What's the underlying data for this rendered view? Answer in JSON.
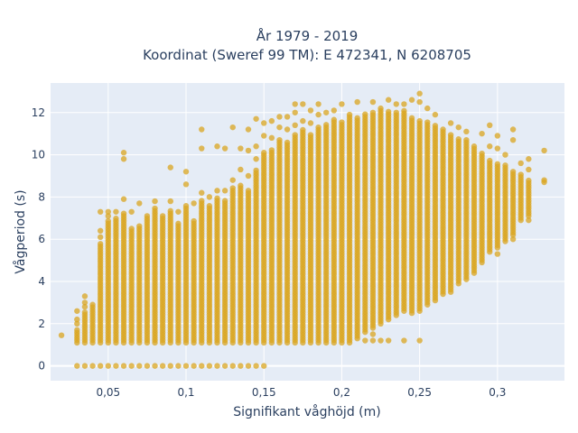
{
  "chart_data": {
    "type": "scatter",
    "title_line1": "År 1979 - 2019",
    "title_line2": "Koordinat (Sweref 99 TM): E 472341, N 6208705",
    "xlabel": "Signifikant våghöjd (m)",
    "ylabel": "Vågperiod (s)",
    "xlim": [
      0.013,
      0.343
    ],
    "ylim": [
      -0.7,
      13.4
    ],
    "xticks": [
      0.05,
      0.1,
      0.15,
      0.2,
      0.25,
      0.3
    ],
    "xtick_labels": [
      "0,05",
      "0,1",
      "0,15",
      "0,2",
      "0,25",
      "0,3"
    ],
    "yticks": [
      0,
      2,
      4,
      6,
      8,
      10,
      12
    ],
    "ytick_labels": [
      "0",
      "2",
      "4",
      "6",
      "8",
      "10",
      "12"
    ],
    "grid": true,
    "color": "#daa520",
    "columns": [
      {
        "x": 0.02,
        "ranges": [
          [
            1.45,
            1.45
          ]
        ],
        "extra": []
      },
      {
        "x": 0.03,
        "ranges": [
          [
            1.1,
            1.8
          ]
        ],
        "extra": [
          0,
          2.0,
          2.2,
          2.6
        ]
      },
      {
        "x": 0.035,
        "ranges": [
          [
            1.1,
            2.6
          ]
        ],
        "extra": [
          0,
          2.8,
          3.0,
          3.3
        ]
      },
      {
        "x": 0.04,
        "ranges": [
          [
            1.1,
            3.0
          ]
        ],
        "extra": [
          0
        ]
      },
      {
        "x": 0.045,
        "ranges": [
          [
            1.1,
            5.8
          ]
        ],
        "extra": [
          0,
          6.1,
          6.4,
          7.3
        ]
      },
      {
        "x": 0.05,
        "ranges": [
          [
            1.1,
            6.9
          ]
        ],
        "extra": [
          0,
          7.1,
          7.3
        ]
      },
      {
        "x": 0.055,
        "ranges": [
          [
            1.1,
            7.0
          ]
        ],
        "extra": [
          0,
          7.3
        ]
      },
      {
        "x": 0.06,
        "ranges": [
          [
            1.1,
            7.3
          ]
        ],
        "extra": [
          0,
          7.9,
          9.8,
          10.1
        ]
      },
      {
        "x": 0.065,
        "ranges": [
          [
            1.1,
            6.6
          ]
        ],
        "extra": [
          0,
          7.3
        ]
      },
      {
        "x": 0.07,
        "ranges": [
          [
            1.1,
            6.7
          ]
        ],
        "extra": [
          0,
          7.7
        ]
      },
      {
        "x": 0.075,
        "ranges": [
          [
            1.1,
            7.2
          ]
        ],
        "extra": [
          0
        ]
      },
      {
        "x": 0.08,
        "ranges": [
          [
            1.1,
            7.5
          ]
        ],
        "extra": [
          0,
          7.8
        ]
      },
      {
        "x": 0.085,
        "ranges": [
          [
            1.1,
            7.1
          ]
        ],
        "extra": [
          0
        ]
      },
      {
        "x": 0.09,
        "ranges": [
          [
            1.1,
            7.4
          ]
        ],
        "extra": [
          0,
          7.8,
          9.4
        ]
      },
      {
        "x": 0.095,
        "ranges": [
          [
            1.1,
            6.8
          ]
        ],
        "extra": [
          0,
          7.3
        ]
      },
      {
        "x": 0.1,
        "ranges": [
          [
            1.1,
            7.6
          ]
        ],
        "extra": [
          0,
          8.6,
          9.2
        ]
      },
      {
        "x": 0.105,
        "ranges": [
          [
            1.1,
            6.9
          ]
        ],
        "extra": [
          0,
          7.7
        ]
      },
      {
        "x": 0.11,
        "ranges": [
          [
            1.1,
            7.9
          ]
        ],
        "extra": [
          0,
          8.2,
          10.3,
          11.2
        ]
      },
      {
        "x": 0.115,
        "ranges": [
          [
            1.1,
            7.6
          ]
        ],
        "extra": [
          0,
          8.0
        ]
      },
      {
        "x": 0.12,
        "ranges": [
          [
            1.1,
            8.0
          ]
        ],
        "extra": [
          0,
          8.3,
          10.4
        ]
      },
      {
        "x": 0.125,
        "ranges": [
          [
            1.1,
            7.9
          ]
        ],
        "extra": [
          0,
          8.3,
          10.3
        ]
      },
      {
        "x": 0.13,
        "ranges": [
          [
            1.1,
            8.5
          ]
        ],
        "extra": [
          0,
          8.8,
          11.3
        ]
      },
      {
        "x": 0.135,
        "ranges": [
          [
            1.1,
            8.6
          ]
        ],
        "extra": [
          0,
          9.3,
          10.3
        ]
      },
      {
        "x": 0.14,
        "ranges": [
          [
            1.1,
            8.4
          ]
        ],
        "extra": [
          0,
          9.0,
          10.2,
          11.2
        ]
      },
      {
        "x": 0.145,
        "ranges": [
          [
            1.1,
            9.3
          ]
        ],
        "extra": [
          0,
          9.8,
          10.4,
          11.7
        ]
      },
      {
        "x": 0.15,
        "ranges": [
          [
            1.1,
            10.2
          ]
        ],
        "extra": [
          0,
          10.9,
          11.5
        ]
      },
      {
        "x": 0.155,
        "ranges": [
          [
            1.1,
            10.3
          ]
        ],
        "extra": [
          10.8,
          11.6
        ]
      },
      {
        "x": 0.16,
        "ranges": [
          [
            1.1,
            10.8
          ]
        ],
        "extra": [
          11.3,
          11.8
        ]
      },
      {
        "x": 0.165,
        "ranges": [
          [
            1.1,
            10.6
          ]
        ],
        "extra": [
          11.2,
          11.8
        ]
      },
      {
        "x": 0.17,
        "ranges": [
          [
            1.1,
            11.0
          ]
        ],
        "extra": [
          11.4,
          12.0,
          12.4
        ]
      },
      {
        "x": 0.175,
        "ranges": [
          [
            1.1,
            11.2
          ]
        ],
        "extra": [
          11.6,
          12.4
        ]
      },
      {
        "x": 0.18,
        "ranges": [
          [
            1.1,
            11.0
          ]
        ],
        "extra": [
          11.5,
          12.1
        ]
      },
      {
        "x": 0.185,
        "ranges": [
          [
            1.1,
            11.4
          ]
        ],
        "extra": [
          11.9,
          12.4
        ]
      },
      {
        "x": 0.19,
        "ranges": [
          [
            1.1,
            11.5
          ]
        ],
        "extra": [
          12.0
        ]
      },
      {
        "x": 0.195,
        "ranges": [
          [
            1.1,
            11.7
          ]
        ],
        "extra": [
          12.1
        ]
      },
      {
        "x": 0.2,
        "ranges": [
          [
            1.1,
            11.6
          ]
        ],
        "extra": [
          12.4
        ]
      },
      {
        "x": 0.205,
        "ranges": [
          [
            1.1,
            11.9
          ]
        ],
        "extra": []
      },
      {
        "x": 0.21,
        "ranges": [
          [
            1.3,
            11.8
          ]
        ],
        "extra": [
          12.5
        ]
      },
      {
        "x": 0.215,
        "ranges": [
          [
            1.6,
            12.0
          ]
        ],
        "extra": [
          1.2
        ]
      },
      {
        "x": 0.22,
        "ranges": [
          [
            1.8,
            12.0
          ]
        ],
        "extra": [
          1.2,
          1.5,
          12.5
        ]
      },
      {
        "x": 0.225,
        "ranges": [
          [
            2.0,
            12.3
          ]
        ],
        "extra": [
          1.2
        ]
      },
      {
        "x": 0.23,
        "ranges": [
          [
            2.2,
            12.1
          ]
        ],
        "extra": [
          1.2,
          12.6
        ]
      },
      {
        "x": 0.235,
        "ranges": [
          [
            2.4,
            12.0
          ]
        ],
        "extra": [
          12.4
        ]
      },
      {
        "x": 0.24,
        "ranges": [
          [
            2.6,
            12.1
          ]
        ],
        "extra": [
          1.2,
          12.4
        ]
      },
      {
        "x": 0.245,
        "ranges": [
          [
            2.5,
            11.8
          ]
        ],
        "extra": [
          12.6
        ]
      },
      {
        "x": 0.25,
        "ranges": [
          [
            2.6,
            11.6
          ]
        ],
        "extra": [
          1.2,
          12.5,
          12.9
        ]
      },
      {
        "x": 0.255,
        "ranges": [
          [
            2.9,
            11.6
          ]
        ],
        "extra": [
          12.2
        ]
      },
      {
        "x": 0.26,
        "ranges": [
          [
            3.1,
            11.4
          ]
        ],
        "extra": [
          11.9
        ]
      },
      {
        "x": 0.265,
        "ranges": [
          [
            3.4,
            11.3
          ]
        ],
        "extra": []
      },
      {
        "x": 0.27,
        "ranges": [
          [
            3.5,
            11.0
          ]
        ],
        "extra": [
          11.5
        ]
      },
      {
        "x": 0.275,
        "ranges": [
          [
            3.9,
            10.8
          ]
        ],
        "extra": [
          11.3
        ]
      },
      {
        "x": 0.28,
        "ranges": [
          [
            4.1,
            10.7
          ]
        ],
        "extra": [
          11.1
        ]
      },
      {
        "x": 0.285,
        "ranges": [
          [
            4.4,
            10.5
          ]
        ],
        "extra": []
      },
      {
        "x": 0.29,
        "ranges": [
          [
            4.9,
            10.1
          ]
        ],
        "extra": [
          11.0
        ]
      },
      {
        "x": 0.295,
        "ranges": [
          [
            5.4,
            9.8
          ]
        ],
        "extra": [
          10.4,
          11.4
        ]
      },
      {
        "x": 0.3,
        "ranges": [
          [
            5.6,
            9.6
          ]
        ],
        "extra": [
          5.3,
          10.3,
          10.9
        ]
      },
      {
        "x": 0.305,
        "ranges": [
          [
            5.9,
            9.5
          ]
        ],
        "extra": [
          10.0
        ]
      },
      {
        "x": 0.31,
        "ranges": [
          [
            6.2,
            9.2
          ]
        ],
        "extra": [
          6.0,
          10.7,
          11.2
        ]
      },
      {
        "x": 0.315,
        "ranges": [
          [
            6.9,
            9.1
          ]
        ],
        "extra": [
          9.6
        ]
      },
      {
        "x": 0.32,
        "ranges": [
          [
            7.1,
            8.8
          ]
        ],
        "extra": [
          6.9,
          9.3,
          9.8
        ]
      },
      {
        "x": 0.33,
        "ranges": [
          [
            8.8,
            8.9
          ]
        ],
        "extra": [
          8.7,
          10.2
        ]
      }
    ]
  }
}
